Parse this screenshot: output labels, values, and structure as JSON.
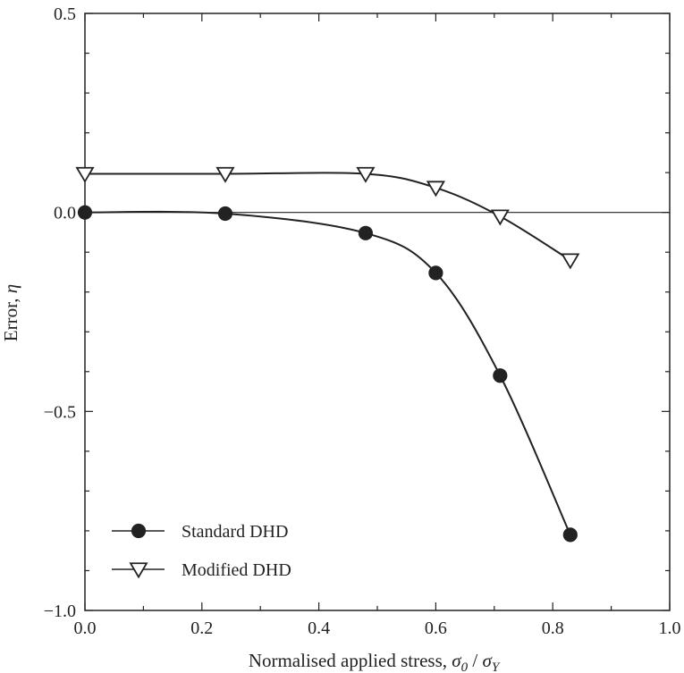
{
  "chart_data": {
    "type": "line",
    "xlabel": "Normalised applied stress, ",
    "xlabel_math": {
      "num": "σ",
      "num_sub": "0",
      "sep": " / ",
      "den": "σ",
      "den_sub": "Y"
    },
    "ylabel": "Error, ",
    "ylabel_math": "η",
    "xlim": [
      0.0,
      1.0
    ],
    "ylim": [
      -1.0,
      0.5
    ],
    "x_ticks": [
      0.0,
      0.2,
      0.4,
      0.6,
      0.8,
      1.0
    ],
    "x_tick_labels": [
      "0.0",
      "0.2",
      "0.4",
      "0.6",
      "0.8",
      "1.0"
    ],
    "y_ticks": [
      -1.0,
      -0.5,
      0.0,
      0.5
    ],
    "y_tick_labels": [
      "−1.0",
      "−0.5",
      "0.0",
      "0.5"
    ],
    "x_minor_step": 0.1,
    "y_minor_step": 0.1,
    "zero_line": true,
    "grid": false,
    "legend_position": "bottom-left",
    "series": [
      {
        "name": "Standard DHD",
        "marker": "filled-circle",
        "x": [
          0.0,
          0.24,
          0.48,
          0.6,
          0.71,
          0.83
        ],
        "y": [
          0.0,
          -0.003,
          -0.052,
          -0.152,
          -0.41,
          -0.81
        ]
      },
      {
        "name": "Modified DHD",
        "marker": "open-triangle-down",
        "x": [
          0.0,
          0.24,
          0.48,
          0.6,
          0.71,
          0.83
        ],
        "y": [
          0.097,
          0.097,
          0.097,
          0.062,
          -0.01,
          -0.12
        ]
      }
    ],
    "colors": {
      "axis": "#222222",
      "line": "#222222",
      "marker_fill_filled": "#222222",
      "marker_fill_open": "#ffffff"
    }
  }
}
